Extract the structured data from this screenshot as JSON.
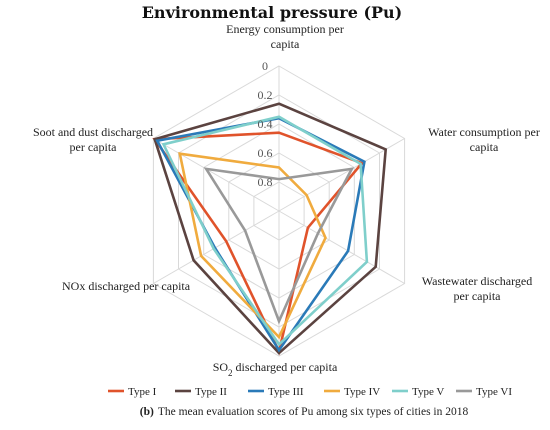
{
  "chart_data": {
    "type": "radar",
    "title": "Environmental pressure (Pu)",
    "axes": [
      "Energy consumption per capita",
      "Water consumption per capita",
      "Wastewater discharged per capita",
      "SO2 discharged per capita",
      "NOx discharged per capita",
      "Soot and dust discharged per capita"
    ],
    "axis_lines": [
      [
        "Energy consumption per",
        "capita"
      ],
      [
        "Water consumption per",
        "capita"
      ],
      [
        "Wastewater discharged",
        "per capita"
      ],
      [
        "SO2 discharged per capita"
      ],
      [
        "NOx discharged per capita"
      ],
      [
        "Soot and dust discharged",
        "per capita"
      ]
    ],
    "radial_ticks": [
      "0",
      "0.2",
      "0.4",
      "0.6",
      "0.8"
    ],
    "scale": "inverted",
    "rlim": [
      1,
      0
    ],
    "grid": true,
    "legend_position": "bottom",
    "series": [
      {
        "name": "Type I",
        "color": "#e0532b",
        "values": [
          0.46,
          0.34,
          0.77,
          0.03,
          0.58,
          0.01
        ]
      },
      {
        "name": "Type II",
        "color": "#5b4340",
        "values": [
          0.26,
          0.15,
          0.23,
          0.02,
          0.32,
          0.01
        ]
      },
      {
        "name": "Type III",
        "color": "#2a7ab8",
        "values": [
          0.36,
          0.32,
          0.45,
          0.04,
          0.49,
          0.03
        ]
      },
      {
        "name": "Type IV",
        "color": "#f0ab3e",
        "values": [
          0.7,
          0.78,
          0.63,
          0.13,
          0.38,
          0.21
        ]
      },
      {
        "name": "Type V",
        "color": "#7fcfcb",
        "values": [
          0.35,
          0.35,
          0.3,
          0.08,
          0.48,
          0.08
        ]
      },
      {
        "name": "Type VI",
        "color": "#999999",
        "values": [
          0.78,
          0.42,
          0.69,
          0.24,
          0.73,
          0.42
        ]
      }
    ],
    "caption_prefix": "(b)",
    "caption": "The mean evaluation scores of Pu among six types of cities in 2018"
  }
}
